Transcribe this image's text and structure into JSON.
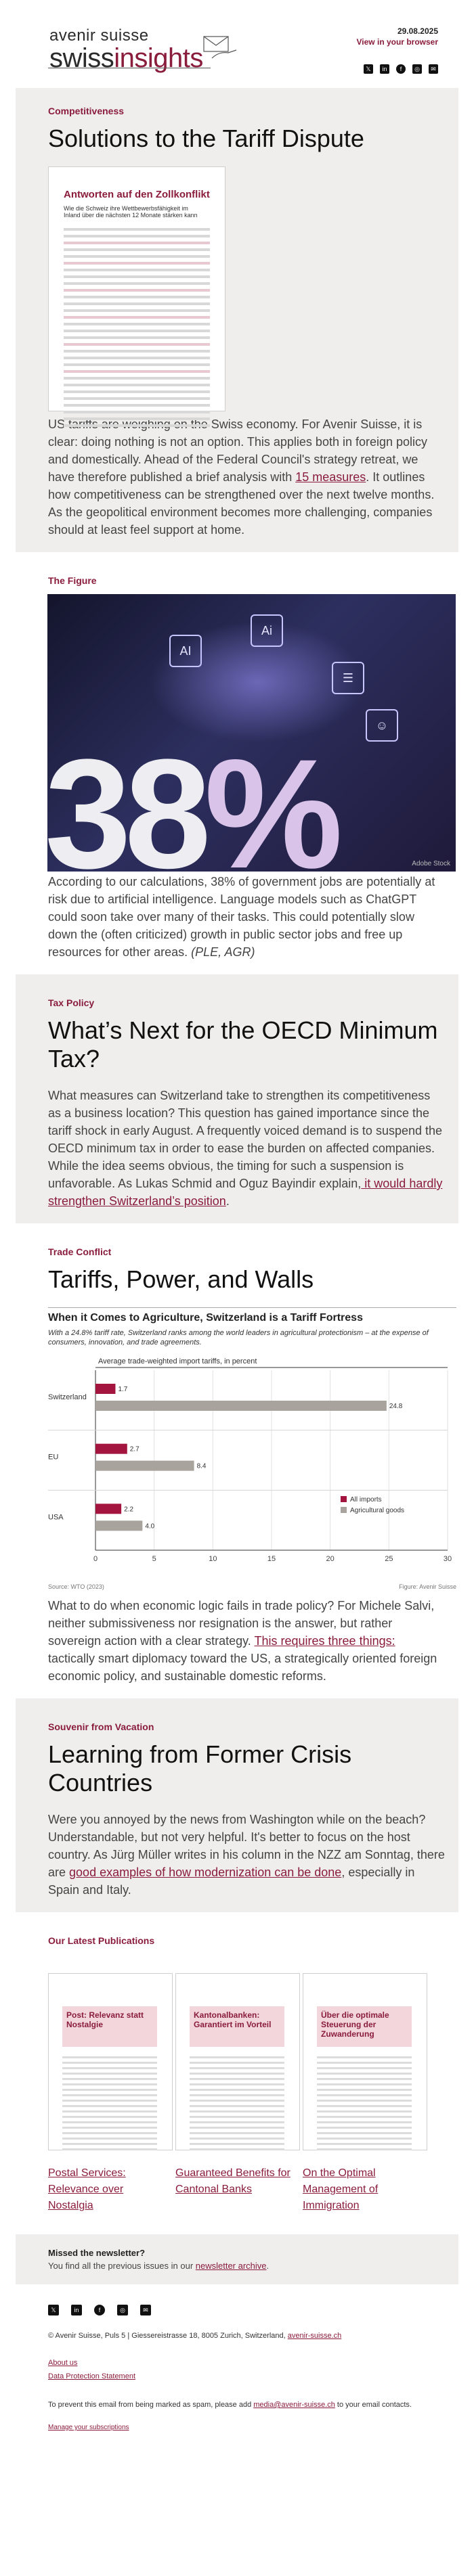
{
  "header": {
    "logo_line1": "avenir suisse",
    "logo_line2a": "swiss",
    "logo_line2b": "insights",
    "date": "29.08.2025",
    "browser_link": "View in your browser",
    "social_icons": [
      "x-icon",
      "linkedin-icon",
      "facebook-icon",
      "instagram-icon",
      "mail-icon"
    ]
  },
  "sections": {
    "competitiveness": {
      "kicker": "Competitiveness",
      "title": "Solutions to the Tariff Dispute",
      "doc_title": "Antworten auf den Zollkonflikt",
      "doc_sub": "Wie die Schweiz ihre Wettbewerbsfähigkeit im Inland über die nächsten 12 Monate stärken kann",
      "text_before": "US tariffs are weighing on the Swiss economy. For Avenir Suisse, it is clear: doing nothing is not an option. This applies both in foreign policy and domestically. Ahead of the Federal Council's strategy retreat, we have therefore published a brief analysis with ",
      "link": "15 measures",
      "text_after": ". It outlines how competitiveness can be strengthened over the next twelve months. As the geopolitical environment becomes more challenging, companies should at least feel support at home."
    },
    "figure": {
      "kicker": "The Figure",
      "big_number": "38",
      "big_pct": "%",
      "credit": "Adobe Stock",
      "text": "According to our calculations, 38% of government jobs are potentially at risk due to artificial intelligence. Language models such as ChatGPT could soon take over many of their tasks. This could potentially slow down the (often criticized) growth in public sector jobs and free up resources for other areas. ",
      "signature": "(PLE, AGR)"
    },
    "taxpolicy": {
      "kicker": "Tax Policy",
      "title": "What’s Next for the OECD Minimum Tax?",
      "text_before": "What measures can Switzerland take to strengthen its competitiveness as a business location? This question has gained importance since the tariff shock in early August. A frequently voiced demand is to suspend the OECD minimum tax in order to ease the burden on affected companies. While the idea seems obvious, the timing for such a suspension is unfavorable. As Lukas Schmid and Oguz Bayindir explain,",
      "link": " it would hardly strengthen Switzerland’s position",
      "text_after": "."
    },
    "trade": {
      "kicker": "Trade Conflict",
      "title": "Tariffs, Power, and Walls",
      "text_before": "What to do when economic logic fails in trade policy? For Michele Salvi, neither submissiveness nor resignation is the answer, but rather sovereign action with a clear strategy. ",
      "link": "This requires three things:",
      "text_after": " tactically smart diplomacy toward the US, a strategically oriented foreign economic policy, and sustainable domestic reforms."
    },
    "vacation": {
      "kicker": "Souvenir from Vacation",
      "title": "Learning from Former Crisis Countries",
      "text_before": "Were you annoyed by the news from Washington while on the beach? Understandable, but not very helpful. It's better to focus on the host country. As Jürg Müller writes in his column in the NZZ am Sonntag, there are ",
      "link": "good examples of how modernization can be done",
      "text_after": ", especially in Spain and Italy."
    },
    "publications": {
      "kicker": "Our Latest Publications",
      "items": [
        {
          "cover_title": "Post: Relevanz statt Nostalgie",
          "link": "Postal Services: Relevance over Nostalgia"
        },
        {
          "cover_title": "Kantonalbanken: Garantiert im Vorteil",
          "link": "Guaranteed Benefits for Cantonal Banks"
        },
        {
          "cover_title": "Über die optimale Steuerung der Zuwanderung",
          "link": "On the Optimal Management of Immigration"
        }
      ]
    }
  },
  "chart_data": {
    "type": "bar",
    "title": "When it Comes to Agriculture, Switzerland is a Tariff Fortress",
    "subtitle": "With a 24.8% tariff rate, Switzerland ranks among the world leaders in agricultural protectionism – at the expense of consumers, innovation, and trade agreements.",
    "axis_label": "Average trade-weighted import tariffs, in percent",
    "categories": [
      "Switzerland",
      "EU",
      "USA"
    ],
    "series": [
      {
        "name": "All imports",
        "values": [
          1.7,
          2.7,
          2.2
        ],
        "color": "#a3153f"
      },
      {
        "name": "Agricultural goods",
        "values": [
          24.8,
          8.4,
          4.0
        ],
        "color": "#a8a49d"
      }
    ],
    "value_labels": [
      [
        "1.7",
        "24.8"
      ],
      [
        "2.7",
        "8.4"
      ],
      [
        "2.2",
        "4.0"
      ]
    ],
    "xlim": [
      0,
      30
    ],
    "xticks": [
      "0",
      "5",
      "10",
      "15",
      "20",
      "25",
      "30"
    ],
    "legend_position": "bottom-right",
    "source": "Source: WTO (2023)",
    "credit": "Figure: Avenir Suisse"
  },
  "missed": {
    "title": "Missed the newsletter?",
    "text": "You find all the previous issues in our ",
    "link": "newsletter archive",
    "end": "."
  },
  "footer": {
    "social_icons": [
      "x-icon",
      "linkedin-icon",
      "facebook-icon",
      "instagram-icon",
      "mail-icon"
    ],
    "address": "© Avenir Suisse, Puls 5 | Giessereistrasse 18, 8005 Zurich, Switzerland, ",
    "website": "avenir-suisse.ch",
    "about": "About us",
    "privacy": "Data Protection Statement",
    "spam_before": "To prevent this email from being marked as spam, please add ",
    "spam_email": "media@avenir-suisse.ch",
    "spam_after": " to your email contacts.",
    "manage": "Manage your subscriptions"
  }
}
